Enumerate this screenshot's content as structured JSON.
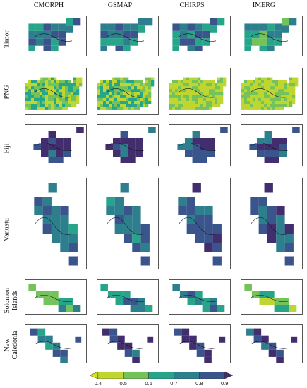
{
  "columns": [
    "CMORPH",
    "GSMAP",
    "CHIRPS",
    "IMERG"
  ],
  "rows": [
    {
      "label": "Timor",
      "line2": ""
    },
    {
      "label": "PNG",
      "line2": ""
    },
    {
      "label": "Fiji",
      "line2": ""
    },
    {
      "label": "Vanuatu",
      "line2": ""
    },
    {
      "label": "Solomon",
      "line2": "Islands"
    },
    {
      "label": "New",
      "line2": "Caledonia"
    }
  ],
  "colorbar": {
    "ticks": [
      "0.4",
      "0.5",
      "0.6",
      "0.7",
      "0.8",
      "0.9"
    ],
    "colors": [
      "#bfd630",
      "#74c25a",
      "#27a58a",
      "#2e7f8e",
      "#3a558c",
      "#422e6e"
    ]
  }
}
